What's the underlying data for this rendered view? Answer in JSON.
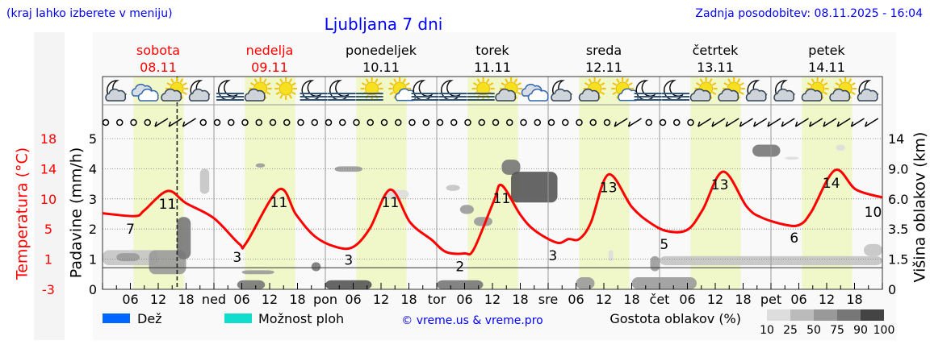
{
  "header": {
    "hint": "(kraj lahko izberete v meniju)",
    "title": "Ljubljana 7 dni",
    "updated": "Zadnja posodobitev: 08.11.2025 - 16:04"
  },
  "colors": {
    "link": "#0000ff",
    "temperature": "#ff0000",
    "weekend": "#ff0000",
    "daylight": "#f0f7c8",
    "rain": "#0066ff",
    "showers": "#11ddcc"
  },
  "days": [
    {
      "name": "sobota",
      "date": "08.11",
      "weekend": true,
      "abbr": ""
    },
    {
      "name": "nedelja",
      "date": "09.11",
      "weekend": true,
      "abbr": "ned"
    },
    {
      "name": "ponedeljek",
      "date": "10.11",
      "weekend": false,
      "abbr": "pon"
    },
    {
      "name": "torek",
      "date": "11.11",
      "weekend": false,
      "abbr": "tor"
    },
    {
      "name": "sreda",
      "date": "12.11",
      "weekend": false,
      "abbr": "sre"
    },
    {
      "name": "četrtek",
      "date": "13.11",
      "weekend": false,
      "abbr": "čet"
    },
    {
      "name": "petek",
      "date": "14.11",
      "weekend": false,
      "abbr": "pet"
    }
  ],
  "hour_labels": [
    "06",
    "12",
    "18"
  ],
  "icons": [
    "moon-cloud",
    "clouds",
    "sun-cloud",
    "moon-cloud",
    "moon-fog",
    "sun-cloud",
    "sun",
    "moon-fog",
    "moon-fog",
    "sun-fog",
    "sun-small-cloud",
    "moon-fog",
    "moon-fog",
    "sun-fog",
    "sun-cloud",
    "clouds",
    "moon-cloud",
    "sun-cloud",
    "sun-small-cloud",
    "moon-fog",
    "moon-fog",
    "sun-cloud",
    "sun-cloud",
    "moon-cloud",
    "moon-cloud",
    "sun-cloud",
    "sun-cloud",
    "moon-cloud"
  ],
  "wind": [
    "calm",
    "calm",
    "calm",
    "calm",
    "barb",
    "barb",
    "barb",
    "calm",
    "calm",
    "calm",
    "calm",
    "calm",
    "calm",
    "calm",
    "calm",
    "calm",
    "calm",
    "calm",
    "calm",
    "calm",
    "calm",
    "calm",
    "calm",
    "calm",
    "calm",
    "calm",
    "calm",
    "calm",
    "calm",
    "calm",
    "calm",
    "calm",
    "calm",
    "calm",
    "calm",
    "calm",
    "calm",
    "barb",
    "barb",
    "calm",
    "calm",
    "calm",
    "calm",
    "barb",
    "barb",
    "barb",
    "barb",
    "barb",
    "barb",
    "barb",
    "barb",
    "barb",
    "barb",
    "barb",
    "barb",
    "barb"
  ],
  "chart_data": {
    "type": "line",
    "x_unit": "hours from Sat 08.11 00:00",
    "now_marker": "08.11 16:04",
    "daylight": {
      "from": "06:40",
      "to": "17:30"
    },
    "left_axis_temperature": {
      "label": "Temperatura (°C)",
      "ticks": [
        -3,
        1,
        5,
        10,
        14,
        18
      ],
      "range": [
        -3,
        18
      ]
    },
    "left_axis_precip": {
      "label": "Padavine (mm/h)",
      "ticks": [
        0,
        1,
        2,
        3,
        4,
        5
      ],
      "range": [
        0,
        5
      ]
    },
    "right_axis_cloud": {
      "label": "Višina oblakov (km)",
      "ticks": [
        "0",
        "1.5",
        "3.5",
        "6.0",
        "9.0",
        "14"
      ]
    },
    "zero_degree_line": 0,
    "temperature": [
      [
        0,
        7.6
      ],
      [
        7,
        7.2
      ],
      [
        9,
        8
      ],
      [
        14,
        10.7
      ],
      [
        18,
        9
      ],
      [
        24,
        6.9
      ],
      [
        29.5,
        3.3
      ],
      [
        31,
        3.5
      ],
      [
        38,
        10.9
      ],
      [
        41.7,
        7.4
      ],
      [
        45.7,
        4.4
      ],
      [
        50.3,
        2.9
      ],
      [
        54,
        2.9
      ],
      [
        57.6,
        5.5
      ],
      [
        62,
        10.9
      ],
      [
        66.3,
        6.3
      ],
      [
        70.9,
        3.9
      ],
      [
        74,
        2.2
      ],
      [
        78,
        2.0
      ],
      [
        80,
        2.6
      ],
      [
        84.3,
        9.3
      ],
      [
        86,
        11.5
      ],
      [
        90,
        7.4
      ],
      [
        93.1,
        5.2
      ],
      [
        97.9,
        3.5
      ],
      [
        100.4,
        4.0
      ],
      [
        102.7,
        4.0
      ],
      [
        105.2,
        6.3
      ],
      [
        109,
        13
      ],
      [
        114,
        8.5
      ],
      [
        117.9,
        6.3
      ],
      [
        121.7,
        5.1
      ],
      [
        126,
        5.3
      ],
      [
        129.3,
        8.1
      ],
      [
        133.7,
        13.4
      ],
      [
        138.8,
        8.5
      ],
      [
        142,
        7
      ],
      [
        147,
        6
      ],
      [
        150.2,
        6
      ],
      [
        152.7,
        7.8
      ],
      [
        157.8,
        13.6
      ],
      [
        162.3,
        10.9
      ],
      [
        168,
        9.8
      ]
    ],
    "temperature_labels": [
      {
        "h": 6,
        "t": "7"
      },
      {
        "h": 14,
        "t": "11"
      },
      {
        "h": 29,
        "t": "3"
      },
      {
        "h": 38,
        "t": "11"
      },
      {
        "h": 53,
        "t": "3"
      },
      {
        "h": 62,
        "t": "11"
      },
      {
        "h": 77,
        "t": "2"
      },
      {
        "h": 86,
        "t": "11"
      },
      {
        "h": 97,
        "t": "3"
      },
      {
        "h": 109,
        "t": "13"
      },
      {
        "h": 121,
        "t": "5"
      },
      {
        "h": 133,
        "t": "13"
      },
      {
        "h": 149,
        "t": "6"
      },
      {
        "h": 157,
        "t": "14"
      },
      {
        "h": 167,
        "t": "10"
      }
    ],
    "precipitation": [],
    "cloud_density": [
      {
        "h0": 0,
        "h1": 12,
        "k0": 1.2,
        "k1": 2.1,
        "d": 25
      },
      {
        "h0": 3,
        "h1": 8,
        "k0": 1.4,
        "k1": 1.9,
        "d": 50
      },
      {
        "h0": 10,
        "h1": 18,
        "k0": 0.75,
        "k1": 2.1,
        "d": 50
      },
      {
        "h0": 16,
        "h1": 19,
        "k0": 1.5,
        "k1": 4.5,
        "d": 75
      },
      {
        "h0": 21,
        "h1": 23,
        "k0": 6.5,
        "k1": 9,
        "d": 25
      },
      {
        "h0": 29,
        "h1": 35,
        "k0": 0,
        "k1": 0.45,
        "d": 75
      },
      {
        "h0": 30,
        "h1": 37,
        "k0": 0.75,
        "k1": 0.95,
        "d": 50
      },
      {
        "h0": 33,
        "h1": 35,
        "k0": 9.2,
        "k1": 9.9,
        "d": 50
      },
      {
        "h0": 45,
        "h1": 47,
        "k0": 0.9,
        "k1": 1.35,
        "d": 75
      },
      {
        "h0": 48,
        "h1": 58,
        "k0": 0,
        "k1": 0.45,
        "d": 90
      },
      {
        "h0": 50,
        "h1": 56,
        "k0": 8.7,
        "k1": 9.4,
        "d": 50
      },
      {
        "h0": 61,
        "h1": 66,
        "k0": 6,
        "k1": 6.9,
        "d": 10
      },
      {
        "h0": 72,
        "h1": 82,
        "k0": 0,
        "k1": 0.45,
        "d": 75
      },
      {
        "h0": 74,
        "h1": 77,
        "k0": 6.8,
        "k1": 7.4,
        "d": 25
      },
      {
        "h0": 77,
        "h1": 80,
        "k0": 4.75,
        "k1": 5.5,
        "d": 50
      },
      {
        "h0": 80,
        "h1": 84,
        "k0": 3.75,
        "k1": 4.5,
        "d": 50
      },
      {
        "h0": 86,
        "h1": 90,
        "k0": 8.4,
        "k1": 10.5,
        "d": 75
      },
      {
        "h0": 88,
        "h1": 98,
        "k0": 5.7,
        "k1": 8.7,
        "d": 90
      },
      {
        "h0": 102,
        "h1": 106,
        "k0": 0,
        "k1": 0.6,
        "d": 50
      },
      {
        "h0": 109,
        "h1": 110,
        "k0": 1.4,
        "k1": 2.1,
        "d": 10
      },
      {
        "h0": 114,
        "h1": 128,
        "k0": 0,
        "k1": 0.6,
        "d": 50
      },
      {
        "h0": 118,
        "h1": 120,
        "k0": 0.9,
        "k1": 1.7,
        "d": 50
      },
      {
        "h0": 120,
        "h1": 168,
        "k0": 1.2,
        "k1": 1.7,
        "d": 25
      },
      {
        "h0": 140,
        "h1": 146,
        "k0": 11,
        "k1": 13,
        "d": 75
      },
      {
        "h0": 147,
        "h1": 150,
        "k0": 10.5,
        "k1": 11,
        "d": 10
      },
      {
        "h0": 158,
        "h1": 160,
        "k0": 12,
        "k1": 13,
        "d": 10
      },
      {
        "h0": 164,
        "h1": 168,
        "k0": 1.7,
        "k1": 2.5,
        "d": 25
      }
    ]
  },
  "legend": {
    "rain": "Dež",
    "showers": "Možnost ploh",
    "credit": "© vreme.us & vreme.pro",
    "density_title": "Gostota oblakov (%)",
    "density_levels": [
      "10",
      "25",
      "50",
      "75",
      "90",
      "100"
    ],
    "density_colors": [
      "#dddddd",
      "#bbbbbb",
      "#999999",
      "#777777",
      "#555555",
      "#444444"
    ]
  }
}
